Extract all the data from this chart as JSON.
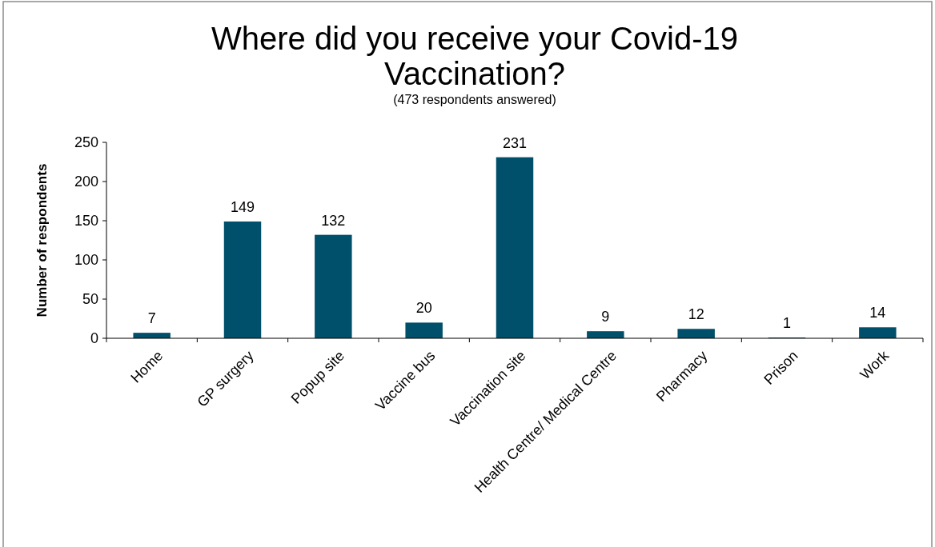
{
  "chart_data": {
    "type": "bar",
    "title": "Where did you receive your Covid-19 Vaccination?",
    "subtitle": "(473 respondents answered)",
    "ylabel": "Number of respondents",
    "categories": [
      "Home",
      "GP surgery",
      "Popup site",
      "Vaccine bus",
      "Vaccination site",
      "Health Centre/ Medical Centre",
      "Pharmacy",
      "Prison",
      "Work"
    ],
    "values": [
      7,
      149,
      132,
      20,
      231,
      9,
      12,
      1,
      14
    ],
    "color": "#00506b",
    "ylim": [
      0,
      250
    ],
    "yticks": [
      0,
      50,
      100,
      150,
      200,
      250
    ],
    "grid": false,
    "data_labels": true
  }
}
